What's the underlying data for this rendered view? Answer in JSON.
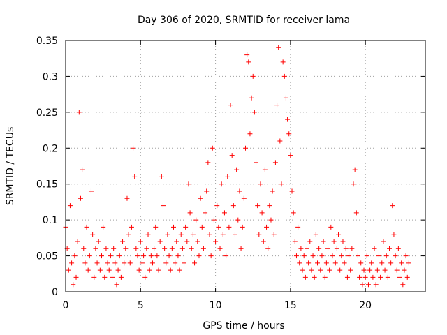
{
  "chart_data": {
    "type": "scatter",
    "title": "Day 306 of 2020, SRMTID for receiver lama",
    "xlabel": "GPS time / hours",
    "ylabel": "SRMTID / TECUs",
    "xlim": [
      0,
      24
    ],
    "ylim": [
      0,
      0.35
    ],
    "x_ticks": [
      {
        "value": 0,
        "label": "0"
      },
      {
        "value": 5,
        "label": "5"
      },
      {
        "value": 10,
        "label": "10"
      },
      {
        "value": 15,
        "label": "15"
      },
      {
        "value": 20,
        "label": "20"
      }
    ],
    "y_ticks": [
      {
        "value": 0,
        "label": "0"
      },
      {
        "value": 0.05,
        "label": "0.05"
      },
      {
        "value": 0.1,
        "label": "0.1"
      },
      {
        "value": 0.15,
        "label": "0.15"
      },
      {
        "value": 0.2,
        "label": "0.2"
      },
      {
        "value": 0.25,
        "label": "0.25"
      },
      {
        "value": 0.3,
        "label": "0.3"
      },
      {
        "value": 0.35,
        "label": "0.35"
      }
    ],
    "grid": true,
    "marker": "+",
    "color": "#ff0000",
    "series": [
      {
        "name": "SRMTID",
        "points": [
          [
            0.0,
            0.09
          ],
          [
            0.1,
            0.06
          ],
          [
            0.2,
            0.03
          ],
          [
            0.3,
            0.12
          ],
          [
            0.4,
            0.04
          ],
          [
            0.5,
            0.01
          ],
          [
            0.6,
            0.05
          ],
          [
            0.7,
            0.02
          ],
          [
            0.8,
            0.07
          ],
          [
            0.9,
            0.25
          ],
          [
            1.0,
            0.13
          ],
          [
            1.1,
            0.17
          ],
          [
            1.2,
            0.06
          ],
          [
            1.3,
            0.04
          ],
          [
            1.4,
            0.09
          ],
          [
            1.5,
            0.03
          ],
          [
            1.6,
            0.05
          ],
          [
            1.7,
            0.14
          ],
          [
            1.8,
            0.08
          ],
          [
            1.9,
            0.02
          ],
          [
            2.0,
            0.06
          ],
          [
            2.1,
            0.04
          ],
          [
            2.2,
            0.07
          ],
          [
            2.3,
            0.03
          ],
          [
            2.4,
            0.05
          ],
          [
            2.5,
            0.09
          ],
          [
            2.6,
            0.02
          ],
          [
            2.7,
            0.06
          ],
          [
            2.8,
            0.04
          ],
          [
            2.9,
            0.03
          ],
          [
            3.0,
            0.05
          ],
          [
            3.1,
            0.02
          ],
          [
            3.2,
            0.06
          ],
          [
            3.3,
            0.04
          ],
          [
            3.4,
            0.01
          ],
          [
            3.5,
            0.03
          ],
          [
            3.6,
            0.05
          ],
          [
            3.7,
            0.02
          ],
          [
            3.8,
            0.07
          ],
          [
            3.9,
            0.04
          ],
          [
            4.0,
            0.06
          ],
          [
            4.1,
            0.13
          ],
          [
            4.2,
            0.08
          ],
          [
            4.3,
            0.04
          ],
          [
            4.4,
            0.09
          ],
          [
            4.5,
            0.2
          ],
          [
            4.6,
            0.16
          ],
          [
            4.7,
            0.06
          ],
          [
            4.8,
            0.05
          ],
          [
            4.9,
            0.03
          ],
          [
            5.0,
            0.07
          ],
          [
            5.1,
            0.04
          ],
          [
            5.2,
            0.05
          ],
          [
            5.3,
            0.02
          ],
          [
            5.4,
            0.06
          ],
          [
            5.5,
            0.08
          ],
          [
            5.6,
            0.03
          ],
          [
            5.7,
            0.05
          ],
          [
            5.8,
            0.04
          ],
          [
            5.9,
            0.06
          ],
          [
            6.0,
            0.09
          ],
          [
            6.1,
            0.05
          ],
          [
            6.2,
            0.03
          ],
          [
            6.3,
            0.07
          ],
          [
            6.4,
            0.16
          ],
          [
            6.5,
            0.12
          ],
          [
            6.6,
            0.06
          ],
          [
            6.7,
            0.04
          ],
          [
            6.8,
            0.08
          ],
          [
            6.9,
            0.05
          ],
          [
            7.0,
            0.03
          ],
          [
            7.1,
            0.06
          ],
          [
            7.2,
            0.09
          ],
          [
            7.3,
            0.04
          ],
          [
            7.4,
            0.07
          ],
          [
            7.5,
            0.05
          ],
          [
            7.6,
            0.03
          ],
          [
            7.7,
            0.08
          ],
          [
            7.8,
            0.06
          ],
          [
            7.9,
            0.04
          ],
          [
            8.0,
            0.09
          ],
          [
            8.1,
            0.07
          ],
          [
            8.2,
            0.15
          ],
          [
            8.3,
            0.11
          ],
          [
            8.4,
            0.06
          ],
          [
            8.5,
            0.08
          ],
          [
            8.6,
            0.04
          ],
          [
            8.7,
            0.1
          ],
          [
            8.8,
            0.07
          ],
          [
            8.9,
            0.05
          ],
          [
            9.0,
            0.13
          ],
          [
            9.1,
            0.09
          ],
          [
            9.2,
            0.06
          ],
          [
            9.3,
            0.11
          ],
          [
            9.4,
            0.14
          ],
          [
            9.5,
            0.18
          ],
          [
            9.6,
            0.08
          ],
          [
            9.7,
            0.05
          ],
          [
            9.8,
            0.2
          ],
          [
            9.9,
            0.1
          ],
          [
            10.0,
            0.07
          ],
          [
            10.1,
            0.12
          ],
          [
            10.2,
            0.09
          ],
          [
            10.3,
            0.06
          ],
          [
            10.4,
            0.15
          ],
          [
            10.5,
            0.08
          ],
          [
            10.6,
            0.11
          ],
          [
            10.7,
            0.05
          ],
          [
            10.8,
            0.16
          ],
          [
            10.9,
            0.09
          ],
          [
            11.0,
            0.26
          ],
          [
            11.1,
            0.19
          ],
          [
            11.2,
            0.12
          ],
          [
            11.3,
            0.08
          ],
          [
            11.4,
            0.17
          ],
          [
            11.5,
            0.1
          ],
          [
            11.6,
            0.14
          ],
          [
            11.7,
            0.06
          ],
          [
            11.8,
            0.09
          ],
          [
            11.9,
            0.13
          ],
          [
            12.0,
            0.2
          ],
          [
            12.1,
            0.33
          ],
          [
            12.2,
            0.32
          ],
          [
            12.3,
            0.22
          ],
          [
            12.4,
            0.27
          ],
          [
            12.5,
            0.3
          ],
          [
            12.6,
            0.25
          ],
          [
            12.7,
            0.18
          ],
          [
            12.8,
            0.12
          ],
          [
            12.9,
            0.08
          ],
          [
            13.0,
            0.15
          ],
          [
            13.1,
            0.11
          ],
          [
            13.2,
            0.07
          ],
          [
            13.3,
            0.17
          ],
          [
            13.4,
            0.09
          ],
          [
            13.5,
            0.06
          ],
          [
            13.6,
            0.12
          ],
          [
            13.7,
            0.1
          ],
          [
            13.8,
            0.14
          ],
          [
            13.9,
            0.08
          ],
          [
            14.0,
            0.18
          ],
          [
            14.1,
            0.26
          ],
          [
            14.2,
            0.34
          ],
          [
            14.3,
            0.21
          ],
          [
            14.4,
            0.15
          ],
          [
            14.5,
            0.32
          ],
          [
            14.6,
            0.3
          ],
          [
            14.7,
            0.27
          ],
          [
            14.8,
            0.24
          ],
          [
            14.9,
            0.22
          ],
          [
            15.0,
            0.19
          ],
          [
            15.1,
            0.14
          ],
          [
            15.2,
            0.11
          ],
          [
            15.3,
            0.07
          ],
          [
            15.4,
            0.05
          ],
          [
            15.5,
            0.09
          ],
          [
            15.6,
            0.04
          ],
          [
            15.7,
            0.06
          ],
          [
            15.8,
            0.03
          ],
          [
            15.9,
            0.05
          ],
          [
            16.0,
            0.02
          ],
          [
            16.1,
            0.06
          ],
          [
            16.2,
            0.04
          ],
          [
            16.3,
            0.07
          ],
          [
            16.4,
            0.03
          ],
          [
            16.5,
            0.05
          ],
          [
            16.6,
            0.02
          ],
          [
            16.7,
            0.08
          ],
          [
            16.8,
            0.04
          ],
          [
            16.9,
            0.06
          ],
          [
            17.0,
            0.03
          ],
          [
            17.1,
            0.05
          ],
          [
            17.2,
            0.07
          ],
          [
            17.3,
            0.02
          ],
          [
            17.4,
            0.04
          ],
          [
            17.5,
            0.06
          ],
          [
            17.6,
            0.03
          ],
          [
            17.7,
            0.09
          ],
          [
            17.8,
            0.05
          ],
          [
            17.9,
            0.07
          ],
          [
            18.0,
            0.04
          ],
          [
            18.1,
            0.06
          ],
          [
            18.2,
            0.08
          ],
          [
            18.3,
            0.03
          ],
          [
            18.4,
            0.05
          ],
          [
            18.5,
            0.07
          ],
          [
            18.6,
            0.04
          ],
          [
            18.7,
            0.06
          ],
          [
            18.8,
            0.02
          ],
          [
            18.9,
            0.05
          ],
          [
            19.0,
            0.03
          ],
          [
            19.1,
            0.06
          ],
          [
            19.2,
            0.15
          ],
          [
            19.3,
            0.17
          ],
          [
            19.4,
            0.11
          ],
          [
            19.5,
            0.05
          ],
          [
            19.6,
            0.02
          ],
          [
            19.7,
            0.04
          ],
          [
            19.8,
            0.01
          ],
          [
            19.9,
            0.03
          ],
          [
            20.0,
            0.02
          ],
          [
            20.1,
            0.05
          ],
          [
            20.2,
            0.01
          ],
          [
            20.3,
            0.03
          ],
          [
            20.4,
            0.04
          ],
          [
            20.5,
            0.02
          ],
          [
            20.6,
            0.06
          ],
          [
            20.7,
            0.01
          ],
          [
            20.8,
            0.03
          ],
          [
            20.9,
            0.05
          ],
          [
            21.0,
            0.02
          ],
          [
            21.1,
            0.04
          ],
          [
            21.2,
            0.07
          ],
          [
            21.3,
            0.03
          ],
          [
            21.4,
            0.05
          ],
          [
            21.5,
            0.02
          ],
          [
            21.6,
            0.06
          ],
          [
            21.7,
            0.04
          ],
          [
            21.8,
            0.12
          ],
          [
            21.9,
            0.08
          ],
          [
            22.0,
            0.05
          ],
          [
            22.1,
            0.03
          ],
          [
            22.2,
            0.06
          ],
          [
            22.3,
            0.02
          ],
          [
            22.4,
            0.04
          ],
          [
            22.5,
            0.01
          ],
          [
            22.6,
            0.03
          ],
          [
            22.7,
            0.05
          ],
          [
            22.8,
            0.02
          ],
          [
            22.9,
            0.04
          ]
        ]
      }
    ]
  }
}
